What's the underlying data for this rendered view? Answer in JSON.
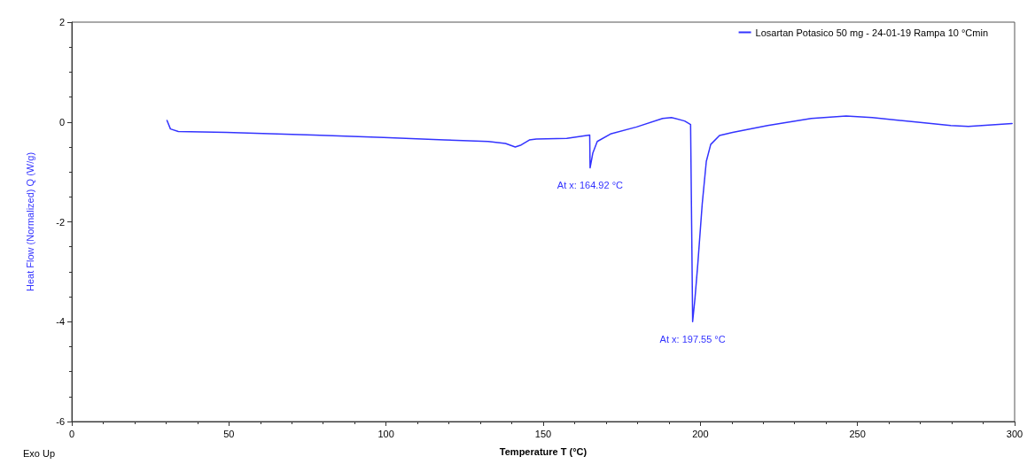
{
  "chart_data": {
    "type": "line",
    "xlabel": "Temperature T (°C)",
    "ylabel": "Heat Flow (Normalized) Q (W/g)",
    "xlim": [
      0,
      300
    ],
    "xticks": [
      0,
      50,
      100,
      150,
      200,
      250,
      300
    ],
    "ylim": [
      -6,
      2
    ],
    "yticks": [
      -6,
      -4,
      -2,
      0,
      2
    ],
    "grid": false,
    "legend": "top right",
    "marker": "none",
    "line_style": "solid",
    "annotations": [
      {
        "text": "At x: 164.92 °C",
        "x": 164.92,
        "y": -0.92
      },
      {
        "text": "At x: 197.55 °C",
        "x": 197.55,
        "y": -4.0
      },
      "Exo Up"
    ],
    "series": [
      {
        "name": "Losartan Potasico 50 mg - 24-01-19 Rampa 10 °Cmin",
        "color": "#3333ff",
        "x": [
          30.3,
          31.4,
          33.9,
          49.2,
          77,
          99.2,
          118.6,
          132.5,
          138,
          141.1,
          143,
          145.6,
          147.8,
          157.5,
          164.8,
          164.92,
          165.8,
          167.2,
          171.4,
          179.7,
          188,
          190.8,
          195,
          196.9,
          197.55,
          198.3,
          199.2,
          200.6,
          201.9,
          203.3,
          206.1,
          210.3,
          221.4,
          235.3,
          246.4,
          254.7,
          268.6,
          279.7,
          285.3,
          299.2
        ],
        "values": [
          0.03,
          -0.14,
          -0.19,
          -0.21,
          -0.26,
          -0.31,
          -0.36,
          -0.39,
          -0.43,
          -0.5,
          -0.46,
          -0.36,
          -0.34,
          -0.33,
          -0.26,
          -0.92,
          -0.62,
          -0.39,
          -0.24,
          -0.1,
          0.07,
          0.09,
          0.02,
          -0.05,
          -4.0,
          -3.53,
          -2.84,
          -1.64,
          -0.79,
          -0.45,
          -0.27,
          -0.21,
          -0.07,
          0.07,
          0.12,
          0.09,
          0,
          -0.07,
          -0.09,
          -0.03
        ]
      }
    ]
  }
}
